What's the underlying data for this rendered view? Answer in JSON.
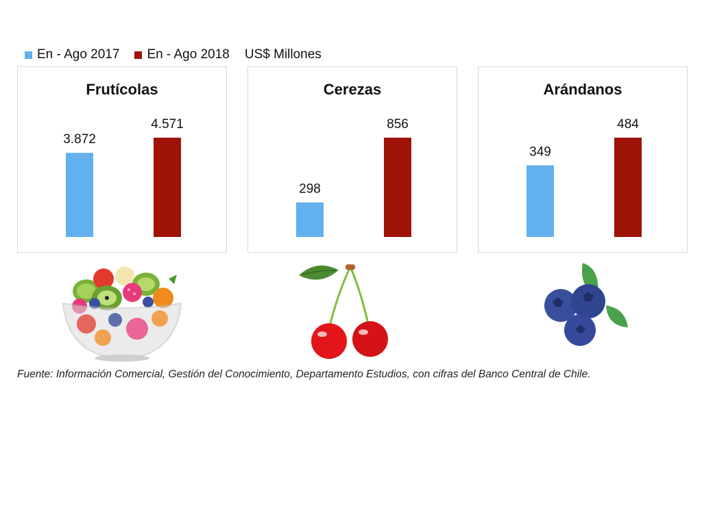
{
  "legend": {
    "items": [
      {
        "label": "En - Ago 2017",
        "color": "#63b0ee"
      },
      {
        "label": "En - Ago 2018",
        "color": "#9e1306"
      }
    ],
    "unit": "US$ Millones"
  },
  "chart_data": [
    {
      "type": "bar",
      "title": "Frutícolas",
      "series": [
        {
          "name": "En - Ago 2017",
          "values": [
            3872
          ],
          "labels": [
            "3.872"
          ],
          "color": "#63b0ee"
        },
        {
          "name": "En - Ago 2018",
          "values": [
            4571
          ],
          "labels": [
            "4.571"
          ],
          "color": "#9e1306"
        }
      ]
    },
    {
      "type": "bar",
      "title": "Cerezas",
      "series": [
        {
          "name": "En - Ago 2017",
          "values": [
            298
          ],
          "labels": [
            "298"
          ],
          "color": "#63b0ee"
        },
        {
          "name": "En - Ago 2018",
          "values": [
            856
          ],
          "labels": [
            "856"
          ],
          "color": "#9e1306"
        }
      ]
    },
    {
      "type": "bar",
      "title": "Arándanos",
      "series": [
        {
          "name": "En - Ago 2017",
          "values": [
            349
          ],
          "labels": [
            "349"
          ],
          "color": "#63b0ee"
        },
        {
          "name": "En - Ago 2018",
          "values": [
            484
          ],
          "labels": [
            "484"
          ],
          "color": "#9e1306"
        }
      ]
    }
  ],
  "illustrations": [
    "fruit-salad-icon",
    "cherries-icon",
    "blueberries-icon"
  ],
  "source": "Fuente: Información Comercial, Gestión del Conocimiento, Departamento Estudios, con cifras del Banco Central de Chile."
}
